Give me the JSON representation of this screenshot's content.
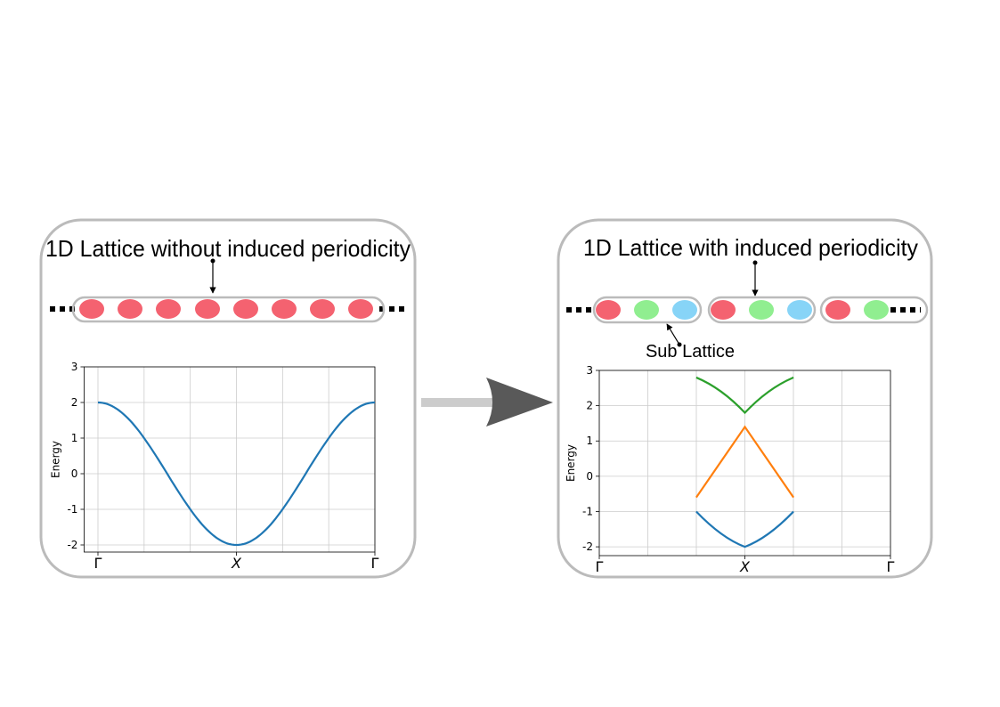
{
  "panels": {
    "left": {
      "title": "1D Lattice without induced periodicity",
      "colors": {
        "site": "#f46270"
      },
      "chart_data": {
        "type": "line",
        "ylabel": "Energy",
        "xticks": [
          "Γ",
          "X",
          "Γ"
        ],
        "yticks": [
          "3",
          "2",
          "1",
          "0",
          "-1",
          "-2"
        ],
        "ylim": [
          -2.2,
          3
        ],
        "x": [
          0,
          0.5,
          1
        ],
        "series": [
          {
            "color": "#1f77b4",
            "values_description_free": true,
            "points": [
              [
                0,
                2.0
              ],
              [
                0.125,
                1.414
              ],
              [
                0.25,
                0.0
              ],
              [
                0.375,
                -1.414
              ],
              [
                0.5,
                -2.0
              ],
              [
                0.625,
                -1.414
              ],
              [
                0.75,
                0.0
              ],
              [
                0.875,
                1.414
              ],
              [
                1.0,
                2.0
              ]
            ]
          }
        ]
      }
    },
    "right": {
      "title": "1D Lattice with induced periodicity",
      "sublattice_label": "Sub Lattice",
      "colors": {
        "site_a": "#f46270",
        "site_b": "#90ee90",
        "site_c": "#87d4f7"
      },
      "chart_data": {
        "type": "line",
        "ylabel": "Energy",
        "xticks": [
          "Γ",
          "X",
          "Γ"
        ],
        "yticks": [
          "3",
          "2",
          "1",
          "0",
          "-1",
          "-2"
        ],
        "ylim": [
          -2.25,
          3
        ],
        "series": [
          {
            "color": "#2ca02c",
            "points": [
              [
                0.333,
                2.8
              ],
              [
                0.42,
                2.5
              ],
              [
                0.5,
                1.8
              ],
              [
                0.58,
                2.5
              ],
              [
                0.667,
                2.8
              ]
            ]
          },
          {
            "color": "#ff7f0e",
            "points": [
              [
                0.333,
                -0.6
              ],
              [
                0.5,
                1.4
              ],
              [
                0.667,
                -0.6
              ]
            ]
          },
          {
            "color": "#1f77b4",
            "points": [
              [
                0.333,
                -1.0
              ],
              [
                0.42,
                -1.75
              ],
              [
                0.5,
                -2.0
              ],
              [
                0.58,
                -1.75
              ],
              [
                0.667,
                -1.0
              ]
            ]
          }
        ]
      }
    }
  }
}
